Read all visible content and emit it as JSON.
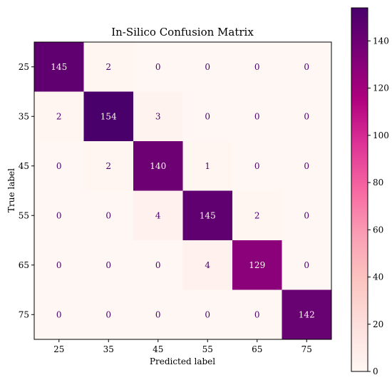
{
  "chart_data": {
    "type": "heatmap",
    "title": "In-Silico Confusion Matrix",
    "xlabel": "Predicted label",
    "ylabel": "True label",
    "categories": [
      "25",
      "35",
      "45",
      "55",
      "65",
      "75"
    ],
    "matrix": [
      [
        145,
        2,
        0,
        0,
        0,
        0
      ],
      [
        2,
        154,
        3,
        0,
        0,
        0
      ],
      [
        0,
        2,
        140,
        1,
        0,
        0
      ],
      [
        0,
        0,
        4,
        145,
        2,
        0
      ],
      [
        0,
        0,
        0,
        4,
        129,
        0
      ],
      [
        0,
        0,
        0,
        0,
        0,
        142
      ]
    ],
    "colorbar": {
      "ticks": [
        "0",
        "20",
        "40",
        "60",
        "80",
        "100",
        "120",
        "140"
      ],
      "range": [
        0,
        154
      ],
      "colormap": "RdPu",
      "low_color": "#fff7f3",
      "high_color": "#49006a"
    },
    "grid": false
  }
}
